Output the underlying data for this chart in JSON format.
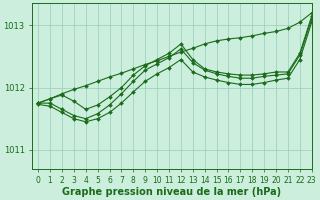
{
  "background_color": "#cceedd",
  "plot_bg_color": "#cceedd",
  "grid_color": "#99ccbb",
  "line_color": "#1a6b1a",
  "marker_color": "#1a6b1a",
  "xlabel": "Graphe pression niveau de la mer (hPa)",
  "xlabel_fontsize": 7,
  "xlim": [
    -0.5,
    23
  ],
  "ylim": [
    1010.7,
    1013.35
  ],
  "yticks": [
    1011,
    1012,
    1013
  ],
  "xticks": [
    0,
    1,
    2,
    3,
    4,
    5,
    6,
    7,
    8,
    9,
    10,
    11,
    12,
    13,
    14,
    15,
    16,
    17,
    18,
    19,
    20,
    21,
    22,
    23
  ],
  "tick_fontsize": 6,
  "series": [
    {
      "x": [
        0,
        1,
        2,
        3,
        4,
        5,
        6,
        7,
        8,
        9,
        10,
        11,
        12,
        13,
        14,
        15,
        16,
        17,
        18,
        19,
        20,
        21,
        22,
        23
      ],
      "y": [
        1011.75,
        1011.82,
        1011.9,
        1011.97,
        1012.03,
        1012.1,
        1012.17,
        1012.23,
        1012.3,
        1012.37,
        1012.43,
        1012.5,
        1012.57,
        1012.63,
        1012.7,
        1012.75,
        1012.78,
        1012.8,
        1012.83,
        1012.87,
        1012.9,
        1012.95,
        1013.05,
        1013.2
      ]
    },
    {
      "x": [
        0,
        1,
        2,
        3,
        4,
        5,
        6,
        7,
        8,
        9,
        10,
        11,
        12,
        13,
        14,
        15,
        16,
        17,
        18,
        19,
        20,
        21,
        22,
        23
      ],
      "y": [
        1011.75,
        1011.82,
        1011.88,
        1011.78,
        1011.65,
        1011.72,
        1011.85,
        1012.0,
        1012.2,
        1012.35,
        1012.45,
        1012.55,
        1012.7,
        1012.45,
        1012.3,
        1012.25,
        1012.22,
        1012.2,
        1012.2,
        1012.22,
        1012.25,
        1012.25,
        1012.55,
        1013.15
      ]
    },
    {
      "x": [
        0,
        1,
        2,
        3,
        4,
        5,
        6,
        7,
        8,
        9,
        10,
        11,
        12,
        13,
        14,
        15,
        16,
        17,
        18,
        19,
        20,
        21,
        22,
        23
      ],
      "y": [
        1011.75,
        1011.75,
        1011.65,
        1011.55,
        1011.5,
        1011.58,
        1011.72,
        1011.9,
        1012.1,
        1012.28,
        1012.38,
        1012.48,
        1012.62,
        1012.4,
        1012.28,
        1012.22,
        1012.18,
        1012.15,
        1012.15,
        1012.18,
        1012.2,
        1012.22,
        1012.52,
        1013.1
      ]
    },
    {
      "x": [
        0,
        1,
        2,
        3,
        4,
        5,
        6,
        7,
        8,
        9,
        10,
        11,
        12,
        13,
        14,
        15,
        16,
        17,
        18,
        19,
        20,
        21,
        22,
        23
      ],
      "y": [
        1011.73,
        1011.7,
        1011.6,
        1011.5,
        1011.45,
        1011.5,
        1011.6,
        1011.75,
        1011.93,
        1012.1,
        1012.22,
        1012.32,
        1012.45,
        1012.25,
        1012.17,
        1012.12,
        1012.08,
        1012.05,
        1012.05,
        1012.08,
        1012.12,
        1012.15,
        1012.45,
        1013.05
      ]
    }
  ]
}
